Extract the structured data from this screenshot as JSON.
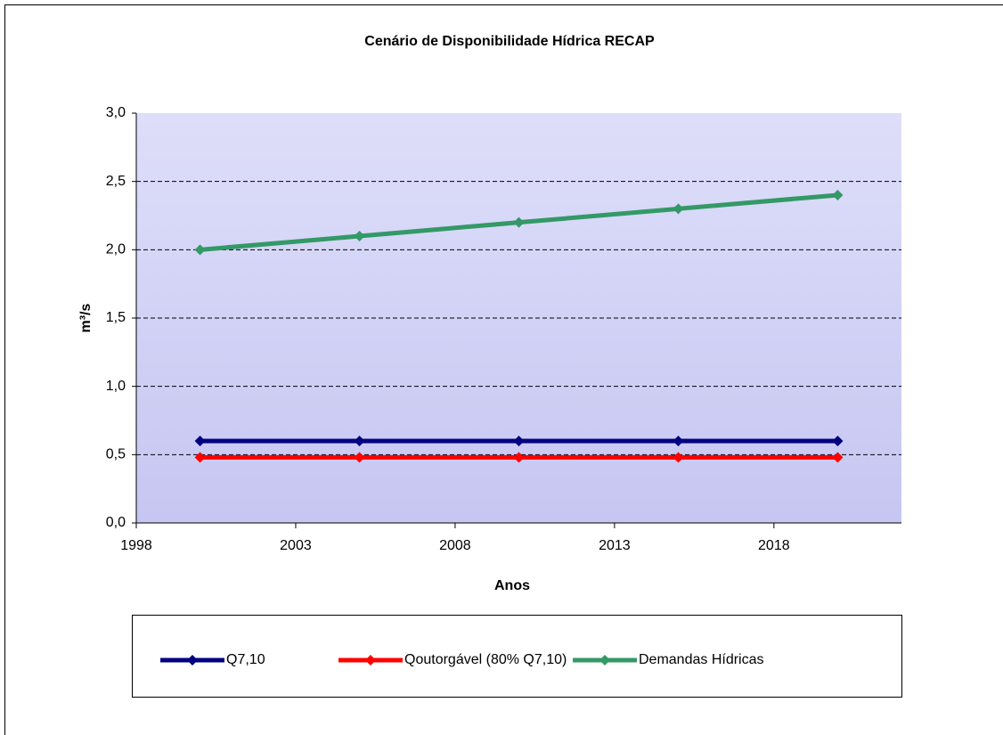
{
  "chart_data": {
    "type": "line",
    "title": "Cenário de Disponibilidade Hídrica RECAP",
    "xlabel": "Anos",
    "ylabel": "m³/s",
    "x": [
      2000,
      2005,
      2010,
      2015,
      2020
    ],
    "series": [
      {
        "name": "Q7,10",
        "color": "#000080",
        "values": [
          0.6,
          0.6,
          0.6,
          0.6,
          0.6
        ]
      },
      {
        "name": "Qoutorgável (80% Q7,10)",
        "color": "#ff0000",
        "values": [
          0.48,
          0.48,
          0.48,
          0.48,
          0.48
        ]
      },
      {
        "name": "Demandas Hídricas",
        "color": "#339966",
        "values": [
          2.0,
          2.1,
          2.2,
          2.3,
          2.4
        ]
      }
    ],
    "xlim": [
      1998,
      2022
    ],
    "xticks": [
      1998,
      2003,
      2008,
      2013,
      2018
    ],
    "ylim": [
      0,
      3
    ],
    "yticks": [
      {
        "value": 0,
        "label": "0,0"
      },
      {
        "value": 0.5,
        "label": "0,5"
      },
      {
        "value": 1,
        "label": "1,0"
      },
      {
        "value": 1.5,
        "label": "1,5"
      },
      {
        "value": 2,
        "label": "2,0"
      },
      {
        "value": 2.5,
        "label": "2,5"
      },
      {
        "value": 3,
        "label": "3,0"
      }
    ],
    "grid": true,
    "legend": "bottom"
  }
}
